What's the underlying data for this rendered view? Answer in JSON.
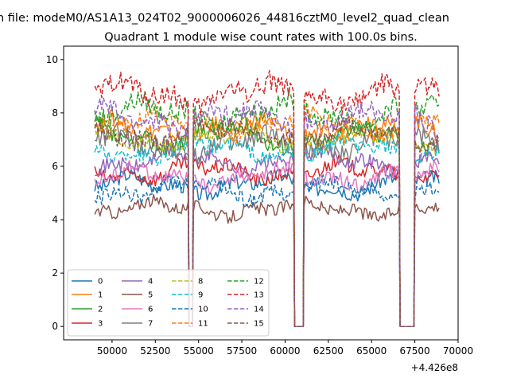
{
  "figure": {
    "suptitle": "n file: modeM0/AS1A13_024T02_9000006026_44816cztM0_level2_quad_clean"
  },
  "chart_data": {
    "type": "line",
    "title": "Quadrant 1 module wise count rates with 100.0s bins.",
    "xlabel": "",
    "ylabel": "",
    "x_offset_label": "+4.426e8",
    "xlim": [
      47200,
      70000
    ],
    "ylim": [
      -0.5,
      10.5
    ],
    "xticks": [
      50000,
      52500,
      55000,
      57500,
      60000,
      62500,
      65000,
      67500,
      70000
    ],
    "xtick_labels": [
      "50000",
      "52500",
      "55000",
      "57500",
      "60000",
      "62500",
      "65000",
      "67500",
      "70000"
    ],
    "yticks": [
      0,
      2,
      4,
      6,
      8,
      10
    ],
    "ytick_labels": [
      "0",
      "2",
      "4",
      "6",
      "8",
      "10"
    ],
    "grid": false,
    "legend_position": "lower-left",
    "legend_columns": 4,
    "segments": [
      {
        "x_start": 49000,
        "x_end": 54400
      },
      {
        "x_start": 54700,
        "x_end": 60500
      },
      {
        "x_start": 61100,
        "x_end": 66600
      },
      {
        "x_start": 67500,
        "x_end": 68950
      }
    ],
    "gaps": [
      {
        "x_start": 54450,
        "x_end": 54650,
        "dip_min": 0
      },
      {
        "x_start": 60600,
        "x_end": 61050,
        "flat": 0
      },
      {
        "x_start": 66650,
        "x_end": 67400,
        "flat": 0
      }
    ],
    "series": [
      {
        "name": "0",
        "level": 5.3,
        "amplitude": 0.35,
        "color": "#1f77b4",
        "dashed": false
      },
      {
        "name": "1",
        "level": 7.4,
        "amplitude": 0.4,
        "color": "#ff7f0e",
        "dashed": false
      },
      {
        "name": "2",
        "level": 7.1,
        "amplitude": 0.45,
        "color": "#2ca02c",
        "dashed": false
      },
      {
        "name": "3",
        "level": 5.8,
        "amplitude": 0.35,
        "color": "#d62728",
        "dashed": false
      },
      {
        "name": "4",
        "level": 6.2,
        "amplitude": 0.35,
        "color": "#9467bd",
        "dashed": false
      },
      {
        "name": "5",
        "level": 4.4,
        "amplitude": 0.3,
        "color": "#8c564b",
        "dashed": false
      },
      {
        "name": "6",
        "level": 5.6,
        "amplitude": 0.35,
        "color": "#e377c2",
        "dashed": false
      },
      {
        "name": "7",
        "level": 6.8,
        "amplitude": 0.45,
        "color": "#7f7f7f",
        "dashed": false
      },
      {
        "name": "8",
        "level": 7.0,
        "amplitude": 0.35,
        "color": "#bcbd22",
        "dashed": true
      },
      {
        "name": "9",
        "level": 6.6,
        "amplitude": 0.35,
        "color": "#17becf",
        "dashed": true
      },
      {
        "name": "10",
        "level": 5.1,
        "amplitude": 0.35,
        "color": "#1f77b4",
        "dashed": true
      },
      {
        "name": "11",
        "level": 7.6,
        "amplitude": 0.4,
        "color": "#ff7f0e",
        "dashed": true
      },
      {
        "name": "12",
        "level": 8.0,
        "amplitude": 0.45,
        "color": "#2ca02c",
        "dashed": true
      },
      {
        "name": "13",
        "level": 8.7,
        "amplitude": 0.5,
        "color": "#d62728",
        "dashed": true
      },
      {
        "name": "14",
        "level": 7.8,
        "amplitude": 0.45,
        "color": "#9467bd",
        "dashed": true
      },
      {
        "name": "15",
        "level": 7.2,
        "amplitude": 0.4,
        "color": "#8c564b",
        "dashed": true
      }
    ]
  }
}
